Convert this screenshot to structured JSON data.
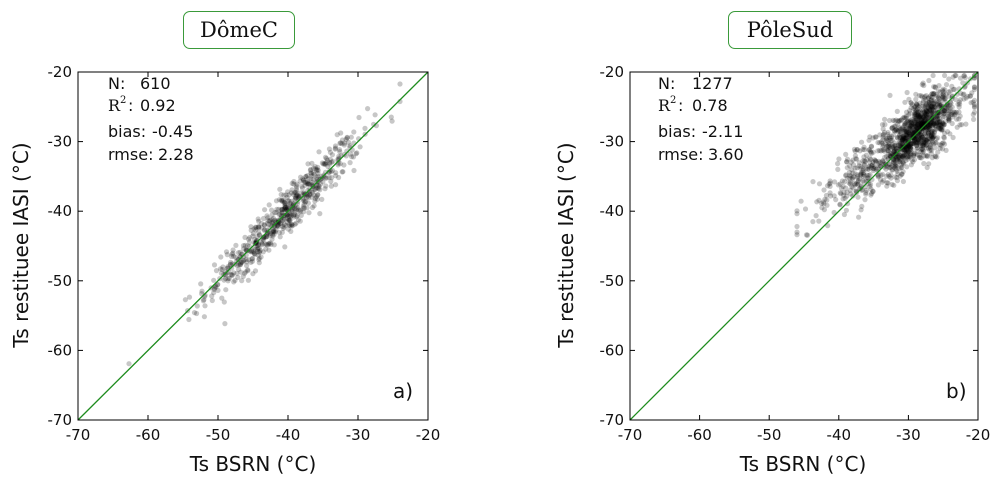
{
  "colors": {
    "fit_line": "#1e8c1e",
    "points": "#000000",
    "title_border": "#3a9a3a"
  },
  "chart_data": [
    {
      "type": "scatter",
      "title": "DômeC",
      "xlabel": "Ts BSRN (°C)",
      "ylabel": "Ts restituee IASI (°C)",
      "xlim": [
        -70,
        -20
      ],
      "ylim": [
        -70,
        -20
      ],
      "xticks": [
        "-70",
        "-60",
        "-50",
        "-40",
        "-30",
        "-20"
      ],
      "yticks": [
        "-70",
        "-60",
        "-50",
        "-40",
        "-30",
        "-20"
      ],
      "reference_line": "1:1",
      "grid": false,
      "stats": {
        "n_label": "N:",
        "n_value": "610",
        "r2_label": "R",
        "r2_sup": "2",
        "r2_colon": ":",
        "r2_value": "0.92",
        "bias_label": "bias:",
        "bias_value": "-0.45",
        "rmse_label": "rmse:",
        "rmse_value": "2.28"
      },
      "corner_label": "a)",
      "n_points": 610,
      "distribution": {
        "x_mean": -40.5,
        "x_sd": 5.5,
        "x_min": -66,
        "x_max": -24,
        "slope": 1.0,
        "intercept": 0.0,
        "noise_sd": 1.7
      }
    },
    {
      "type": "scatter",
      "title": "PôleSud",
      "xlabel": "Ts BSRN (°C)",
      "ylabel": "Ts restituee IASI (°C)",
      "xlim": [
        -70,
        -20
      ],
      "ylim": [
        -70,
        -20
      ],
      "xticks": [
        "-70",
        "-60",
        "-50",
        "-40",
        "-30",
        "-20"
      ],
      "yticks": [
        "-70",
        "-60",
        "-50",
        "-40",
        "-30",
        "-20"
      ],
      "reference_line": "1:1",
      "grid": false,
      "stats": {
        "n_label": "N:",
        "n_value": "1277",
        "r2_label": "R",
        "r2_sup": "2",
        "r2_colon": ":",
        "r2_value": "0.78",
        "bias_label": "bias:",
        "bias_value": "-2.11",
        "rmse_label": "rmse:",
        "rmse_value": "3.60"
      },
      "corner_label": "b)",
      "n_points": 1277,
      "distribution": {
        "x_mean": -31.5,
        "x_sd": 5.2,
        "x_min": -46,
        "x_max": -20.5,
        "slope": 0.75,
        "intercept": -7.0,
        "noise_sd": 2.3
      }
    }
  ]
}
